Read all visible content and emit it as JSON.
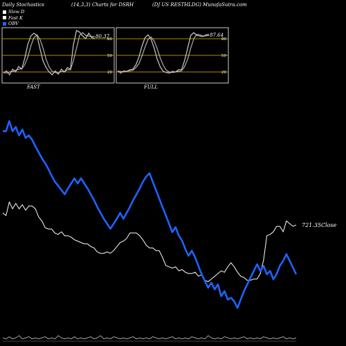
{
  "header": {
    "left": "Daily Stochastics",
    "center": "(14,3,3) Charts for DSRH",
    "right": "(DJ US RESTHLDG) MunafaSutra.com"
  },
  "legend": [
    {
      "label": "Slow D",
      "color": "#ffffff"
    },
    {
      "label": "Fast K",
      "color": "#ffffff"
    },
    {
      "label": "OBV",
      "color": "#1e63ff"
    }
  ],
  "colors": {
    "background": "#000000",
    "band": "#b8860b",
    "obv": "#1e63ff",
    "close": "#ffffff",
    "stoch": "#ffffff"
  },
  "chart_data": [
    {
      "type": "line",
      "panel": "FAST",
      "ylim": [
        0,
        100
      ],
      "y_ticks": [
        80,
        50,
        20
      ],
      "last_value_label": "80.37",
      "series": [
        {
          "name": "Fast K",
          "values": [
            18,
            22,
            15,
            25,
            20,
            30,
            25,
            45,
            70,
            85,
            90,
            86,
            62,
            40,
            28,
            20,
            15,
            22,
            16,
            25,
            20,
            28,
            25,
            70,
            95,
            92,
            85,
            80,
            90,
            82,
            80
          ]
        },
        {
          "name": "Slow D",
          "values": [
            20,
            18,
            20,
            21,
            23,
            25,
            26,
            33,
            47,
            67,
            82,
            87,
            79,
            63,
            43,
            29,
            21,
            19,
            18,
            21,
            20,
            24,
            24,
            41,
            63,
            86,
            91,
            86,
            85,
            84,
            84
          ]
        }
      ]
    },
    {
      "type": "line",
      "panel": "FULL",
      "ylim": [
        0,
        100
      ],
      "y_ticks": [
        80,
        50,
        20
      ],
      "last_value_label": "87.64",
      "series": [
        {
          "name": "Fast K",
          "values": [
            22,
            18,
            22,
            21,
            24,
            25,
            33,
            47,
            67,
            82,
            87,
            79,
            63,
            43,
            29,
            21,
            19,
            18,
            21,
            20,
            24,
            24,
            41,
            63,
            86,
            91,
            86,
            85,
            84,
            87,
            88
          ]
        },
        {
          "name": "Slow D",
          "values": [
            21,
            21,
            20,
            21,
            22,
            23,
            28,
            35,
            49,
            65,
            79,
            83,
            76,
            62,
            45,
            32,
            23,
            20,
            19,
            20,
            21,
            22,
            30,
            43,
            63,
            80,
            88,
            87,
            85,
            85,
            86
          ]
        }
      ]
    },
    {
      "type": "line",
      "panel": "price",
      "close_label": "721.35",
      "close_suffix": "Close",
      "series": [
        {
          "name": "OBV",
          "values": [
            50,
            50,
            62,
            50,
            55,
            45,
            52,
            42,
            45,
            40,
            32,
            25,
            18,
            12,
            5,
            -3,
            -10,
            -15,
            -20,
            -25,
            -18,
            -12,
            -6,
            -12,
            -6,
            -12,
            -18,
            -25,
            -32,
            -40,
            -47,
            -54,
            -60,
            -66,
            -60,
            -54,
            -47,
            -54,
            -47,
            -40,
            -32,
            -25,
            -18,
            -10,
            -4,
            0,
            -10,
            -20,
            -30,
            -40,
            -50,
            -60,
            -70,
            -64,
            -74,
            -80,
            -90,
            -98,
            -92,
            -100,
            -110,
            -120,
            -128,
            -136,
            -130,
            -138,
            -132,
            -146,
            -140,
            -150,
            -148,
            -152,
            -160,
            -150,
            -140,
            -132,
            -124,
            -116,
            -108,
            -116,
            -110,
            -120,
            -116,
            -126,
            -120,
            -110,
            -104,
            -96,
            -104,
            -112,
            -120
          ]
        },
        {
          "name": "Close",
          "values": [
            730,
            728,
            738,
            733,
            737,
            733,
            736,
            732,
            735,
            735,
            733,
            727,
            724,
            719,
            718,
            718,
            715,
            714,
            716,
            713,
            713,
            712,
            710,
            709,
            708,
            707,
            707,
            705,
            704,
            701,
            700,
            700,
            701,
            700,
            702,
            705,
            708,
            709,
            711,
            715,
            715,
            715,
            713,
            710,
            706,
            704,
            704,
            702,
            702,
            697,
            691,
            690,
            689,
            690,
            687,
            688,
            686,
            685,
            685,
            686,
            683,
            684,
            680,
            679,
            681,
            683,
            685,
            687,
            686,
            690,
            693,
            690,
            686,
            683,
            682,
            680,
            680,
            681,
            681,
            685,
            695,
            713,
            714,
            716,
            720,
            720,
            716,
            724,
            722,
            720,
            721
          ]
        }
      ]
    },
    {
      "type": "area",
      "panel": "volume",
      "series": [
        {
          "name": "Volume",
          "values": [
            3,
            2,
            4,
            2,
            3,
            5,
            2,
            3,
            4,
            2,
            3,
            2,
            3,
            4,
            2,
            3,
            2,
            5,
            3,
            2,
            3,
            2,
            4,
            2,
            3,
            2,
            3,
            4,
            2,
            3,
            5,
            2,
            3,
            2,
            4,
            3,
            2,
            3,
            2,
            3,
            4,
            2,
            3,
            2,
            3,
            2,
            4,
            3,
            2,
            3,
            2,
            3,
            4,
            2,
            3,
            2,
            3,
            2,
            4,
            3,
            2,
            3,
            2,
            5,
            3,
            2,
            3,
            2,
            4,
            3,
            2,
            3,
            2,
            3,
            4,
            2,
            3,
            2,
            3,
            2,
            4,
            3,
            2,
            3,
            2,
            3,
            4,
            2,
            3,
            2,
            3
          ]
        }
      ]
    }
  ]
}
